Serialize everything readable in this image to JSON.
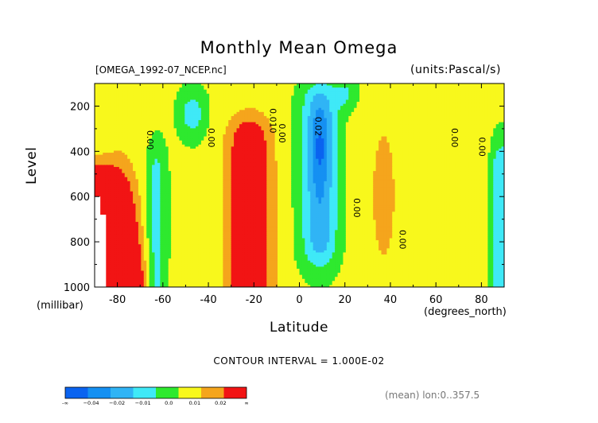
{
  "chart_data": {
    "type": "heatmap",
    "title": "Monthly Mean Omega",
    "subtitle": "[OMEGA_1992-07_NCEP.nc]",
    "units_label": "(units:Pascal/s)",
    "xlabel": "Latitude",
    "xlabel_units": "(degrees_north)",
    "ylabel": "Level",
    "ylabel_units": "(millibar)",
    "xlim": [
      -90,
      90
    ],
    "ylim": [
      1000,
      100
    ],
    "x_ticks": [
      -80,
      -60,
      -40,
      -20,
      0,
      20,
      40,
      60,
      80
    ],
    "x_tick_labels": [
      "-80",
      "-60",
      "-40",
      "-20",
      "0",
      "20",
      "40",
      "60",
      "80"
    ],
    "y_ticks": [
      200,
      400,
      600,
      800,
      1000
    ],
    "y_tick_labels": [
      "200",
      "400",
      "600",
      "800",
      "1000"
    ],
    "contour_interval_text": "CONTOUR INTERVAL = 1.000E-02",
    "colorbar": {
      "tick_labels": [
        "-∞",
        "−0.04",
        "−0.02",
        "−0.01",
        "0.0",
        "0.01",
        "0.02",
        "∞"
      ],
      "bins": [
        {
          "max": -0.04,
          "color": "#0a63f0"
        },
        {
          "max": -0.03,
          "color": "#1590f2"
        },
        {
          "max": -0.02,
          "color": "#30b4f5"
        },
        {
          "max": -0.01,
          "color": "#3fe9f7"
        },
        {
          "max": 0.0,
          "color": "#2ee92e"
        },
        {
          "max": 0.01,
          "color": "#f8f81c"
        },
        {
          "max": 0.02,
          "color": "#f5a51c"
        },
        {
          "max": null,
          "color": "#f21414"
        }
      ]
    },
    "contour_labels": [
      {
        "text": "0.00",
        "lat": -67,
        "lev": 350
      },
      {
        "text": "0.00",
        "lat": -40,
        "lev": 340
      },
      {
        "text": "0.010",
        "lat": -13,
        "lev": 265
      },
      {
        "text": "0.00",
        "lat": -9,
        "lev": 320
      },
      {
        "text": "0.02",
        "lat": 7,
        "lev": 290
      },
      {
        "text": "0.00",
        "lat": 24,
        "lev": 650
      },
      {
        "text": "0.00",
        "lat": 44,
        "lev": 790
      },
      {
        "text": "0.00",
        "lat": 67,
        "lev": 340
      },
      {
        "text": "0.00",
        "lat": 79,
        "lev": 380
      }
    ],
    "omega_field": {
      "note_units": "Pa/s",
      "features": [
        {
          "lat0": -35,
          "lat1": -8,
          "lev0": 240,
          "lev1": 1000,
          "value": 0.035
        },
        {
          "lat0": 0,
          "lat1": 20,
          "lev0": 100,
          "lev1": 850,
          "value": -0.03
        },
        {
          "lat0": 5,
          "lat1": 12,
          "lev0": 280,
          "lev1": 500,
          "value": -0.045
        },
        {
          "lat0": -90,
          "lat1": -65,
          "lev0": 500,
          "lev1": 1000,
          "value": 0.05
        },
        {
          "lat0": -65,
          "lat1": -55,
          "lev0": 350,
          "lev1": 1000,
          "value": -0.02
        },
        {
          "lat0": 82,
          "lat1": 90,
          "lev0": 300,
          "lev1": 1000,
          "value": -0.02
        }
      ]
    },
    "footer": "(mean) lon:0..357.5"
  }
}
